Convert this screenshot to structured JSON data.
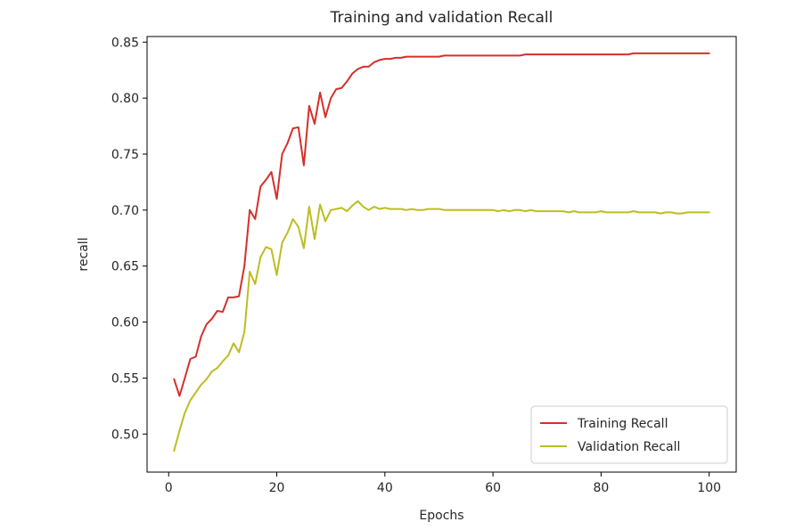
{
  "chart_data": {
    "type": "line",
    "title": "Training and validation Recall",
    "xlabel": "Epochs",
    "ylabel": "recall",
    "xlim": [
      -4,
      105
    ],
    "ylim": [
      0.466,
      0.855
    ],
    "xticks": [
      0,
      20,
      40,
      60,
      80,
      100
    ],
    "yticks": [
      0.5,
      0.55,
      0.6,
      0.65,
      0.7,
      0.75,
      0.8,
      0.85
    ],
    "ytick_labels": [
      "0.50",
      "0.55",
      "0.60",
      "0.65",
      "0.70",
      "0.75",
      "0.80",
      "0.85"
    ],
    "grid": false,
    "legend_position": "lower right",
    "series": [
      {
        "name": "Training Recall",
        "color": "#d62f2b",
        "x": [
          1,
          2,
          3,
          4,
          5,
          6,
          7,
          8,
          9,
          10,
          11,
          12,
          13,
          14,
          15,
          16,
          17,
          18,
          19,
          20,
          21,
          22,
          23,
          24,
          25,
          26,
          27,
          28,
          29,
          30,
          31,
          32,
          33,
          34,
          35,
          36,
          37,
          38,
          39,
          40,
          41,
          42,
          43,
          44,
          45,
          46,
          47,
          48,
          49,
          50,
          51,
          52,
          53,
          54,
          55,
          56,
          57,
          58,
          59,
          60,
          61,
          62,
          63,
          64,
          65,
          66,
          67,
          68,
          69,
          70,
          71,
          72,
          73,
          74,
          75,
          76,
          77,
          78,
          79,
          80,
          81,
          82,
          83,
          84,
          85,
          86,
          87,
          88,
          89,
          90,
          91,
          92,
          93,
          94,
          95,
          96,
          97,
          98,
          99,
          100
        ],
        "y": [
          0.549,
          0.534,
          0.55,
          0.567,
          0.569,
          0.587,
          0.598,
          0.603,
          0.61,
          0.609,
          0.622,
          0.622,
          0.623,
          0.65,
          0.7,
          0.692,
          0.721,
          0.727,
          0.734,
          0.71,
          0.75,
          0.76,
          0.773,
          0.774,
          0.74,
          0.793,
          0.777,
          0.805,
          0.783,
          0.8,
          0.808,
          0.809,
          0.815,
          0.822,
          0.826,
          0.828,
          0.828,
          0.832,
          0.834,
          0.835,
          0.835,
          0.836,
          0.836,
          0.837,
          0.837,
          0.837,
          0.837,
          0.837,
          0.837,
          0.837,
          0.838,
          0.838,
          0.838,
          0.838,
          0.838,
          0.838,
          0.838,
          0.838,
          0.838,
          0.838,
          0.838,
          0.838,
          0.838,
          0.838,
          0.838,
          0.839,
          0.839,
          0.839,
          0.839,
          0.839,
          0.839,
          0.839,
          0.839,
          0.839,
          0.839,
          0.839,
          0.839,
          0.839,
          0.839,
          0.839,
          0.839,
          0.839,
          0.839,
          0.839,
          0.839,
          0.84,
          0.84,
          0.84,
          0.84,
          0.84,
          0.84,
          0.84,
          0.84,
          0.84,
          0.84,
          0.84,
          0.84,
          0.84,
          0.84,
          0.84
        ]
      },
      {
        "name": "Validation Recall",
        "color": "#bcbd22",
        "x": [
          1,
          2,
          3,
          4,
          5,
          6,
          7,
          8,
          9,
          10,
          11,
          12,
          13,
          14,
          15,
          16,
          17,
          18,
          19,
          20,
          21,
          22,
          23,
          24,
          25,
          26,
          27,
          28,
          29,
          30,
          31,
          32,
          33,
          34,
          35,
          36,
          37,
          38,
          39,
          40,
          41,
          42,
          43,
          44,
          45,
          46,
          47,
          48,
          49,
          50,
          51,
          52,
          53,
          54,
          55,
          56,
          57,
          58,
          59,
          60,
          61,
          62,
          63,
          64,
          65,
          66,
          67,
          68,
          69,
          70,
          71,
          72,
          73,
          74,
          75,
          76,
          77,
          78,
          79,
          80,
          81,
          82,
          83,
          84,
          85,
          86,
          87,
          88,
          89,
          90,
          91,
          92,
          93,
          94,
          95,
          96,
          97,
          98,
          99,
          100
        ],
        "y": [
          0.485,
          0.503,
          0.519,
          0.53,
          0.537,
          0.544,
          0.549,
          0.556,
          0.559,
          0.565,
          0.57,
          0.581,
          0.573,
          0.591,
          0.645,
          0.634,
          0.658,
          0.667,
          0.665,
          0.642,
          0.671,
          0.68,
          0.692,
          0.685,
          0.666,
          0.703,
          0.674,
          0.705,
          0.69,
          0.7,
          0.701,
          0.702,
          0.699,
          0.704,
          0.708,
          0.703,
          0.7,
          0.703,
          0.701,
          0.702,
          0.701,
          0.701,
          0.701,
          0.7,
          0.701,
          0.7,
          0.7,
          0.701,
          0.701,
          0.701,
          0.7,
          0.7,
          0.7,
          0.7,
          0.7,
          0.7,
          0.7,
          0.7,
          0.7,
          0.7,
          0.699,
          0.7,
          0.699,
          0.7,
          0.7,
          0.699,
          0.7,
          0.699,
          0.699,
          0.699,
          0.699,
          0.699,
          0.699,
          0.698,
          0.699,
          0.698,
          0.698,
          0.698,
          0.698,
          0.699,
          0.698,
          0.698,
          0.698,
          0.698,
          0.698,
          0.699,
          0.698,
          0.698,
          0.698,
          0.698,
          0.697,
          0.698,
          0.698,
          0.697,
          0.697,
          0.698,
          0.698,
          0.698,
          0.698,
          0.698
        ]
      }
    ]
  }
}
